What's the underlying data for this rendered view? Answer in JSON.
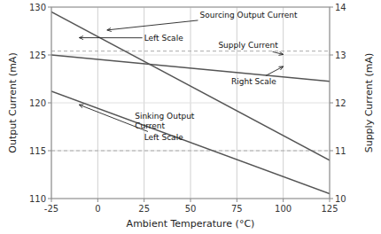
{
  "chart_data": {
    "type": "line",
    "x": [
      -25,
      125
    ],
    "series": [
      {
        "values": [
          129.5,
          114.0
        ],
        "color": "#555555"
      },
      {
        "values": [
          121.2,
          110.5
        ],
        "color": "#555555"
      },
      {
        "values": [
          13.0,
          12.45
        ],
        "color": "#555555",
        "axis": "y2"
      }
    ],
    "xlim": [
      -25,
      125
    ],
    "xticks": [
      -25,
      0,
      25,
      50,
      75,
      100,
      125
    ],
    "ylim": [
      110,
      130
    ],
    "yticks": [
      110,
      115,
      120,
      125,
      130
    ],
    "y2lim": [
      10,
      14
    ],
    "y2ticks": [
      10,
      11,
      12,
      13,
      14
    ],
    "xlabel": "Ambient Temperature (°C)",
    "ylabel": "Output Current (mA)",
    "y2label": "Supply Current (mA)",
    "grid": true,
    "hlines": [
      125.4,
      115.0
    ],
    "annotations": [
      {
        "text": "Sourcing Output Current",
        "xy": [
          5,
          127.6
        ],
        "xytext": [
          55,
          129.2
        ]
      },
      {
        "text": "Left Scale",
        "xy": [
          -10,
          126.8
        ],
        "xytext": [
          25,
          126.8
        ]
      },
      {
        "text": "Sinking Output\nCurrent",
        "xytext": [
          20,
          119.0
        ]
      },
      {
        "text": "Left Scale",
        "xy": [
          -10,
          119.8
        ],
        "xytext": [
          25,
          117.8
        ]
      },
      {
        "text": "Supply Current",
        "xy": [
          100,
          125.05
        ],
        "xytext": [
          65,
          126.0
        ]
      },
      {
        "text": "Right Scale",
        "xy": [
          100,
          123.8
        ],
        "xytext": [
          72,
          122.2
        ]
      }
    ]
  }
}
